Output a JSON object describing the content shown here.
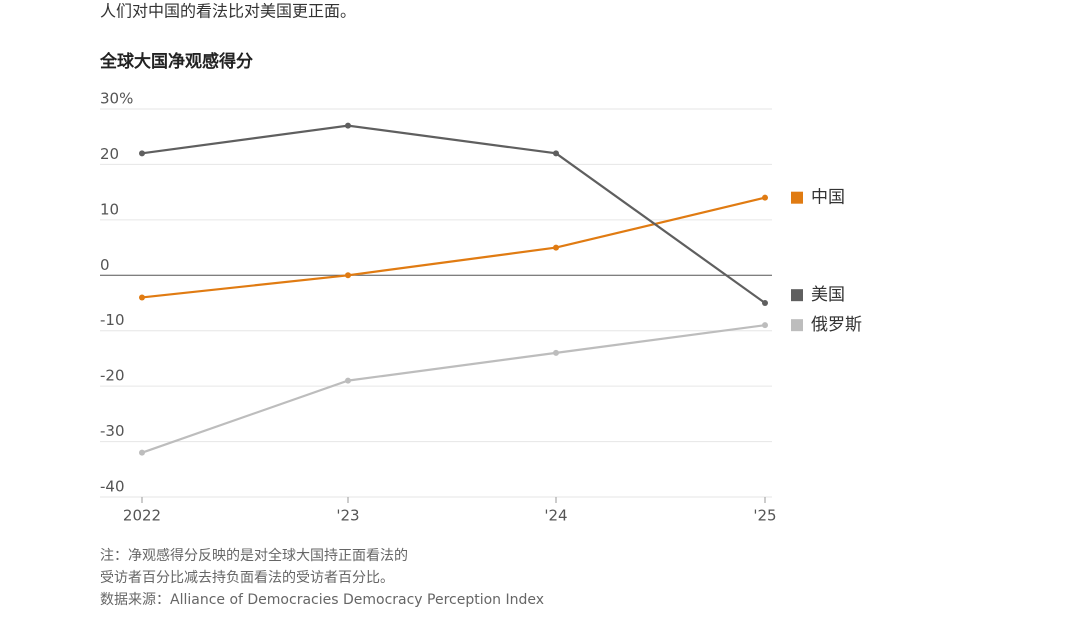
{
  "chart_data": {
    "type": "line",
    "intro": "人们对中国的看法比对美国更正面。",
    "title": "全球大国净观感得分",
    "categories": [
      "2022",
      "'23",
      "'24",
      "'25"
    ],
    "series": [
      {
        "name": "中国",
        "color": "#e07b12",
        "values": [
          -4,
          0,
          5,
          14
        ]
      },
      {
        "name": "美国",
        "color": "#5f5f5f",
        "values": [
          22,
          27,
          22,
          -5
        ]
      },
      {
        "name": "俄罗斯",
        "color": "#bdbdbd",
        "values": [
          -32,
          -19,
          -14,
          -9
        ]
      }
    ],
    "ylim": [
      -40,
      30
    ],
    "yticks": [
      {
        "value": 30,
        "label": "30%"
      },
      20,
      10,
      0,
      -10,
      -20,
      -30,
      -40
    ],
    "grid": true,
    "notes": [
      "注：净观感得分反映的是对全球大国持正面看法的",
      "受访者百分比减去持负面看法的受访者百分比。",
      "数据来源：Alliance of Democracies Democracy Perception Index"
    ]
  }
}
